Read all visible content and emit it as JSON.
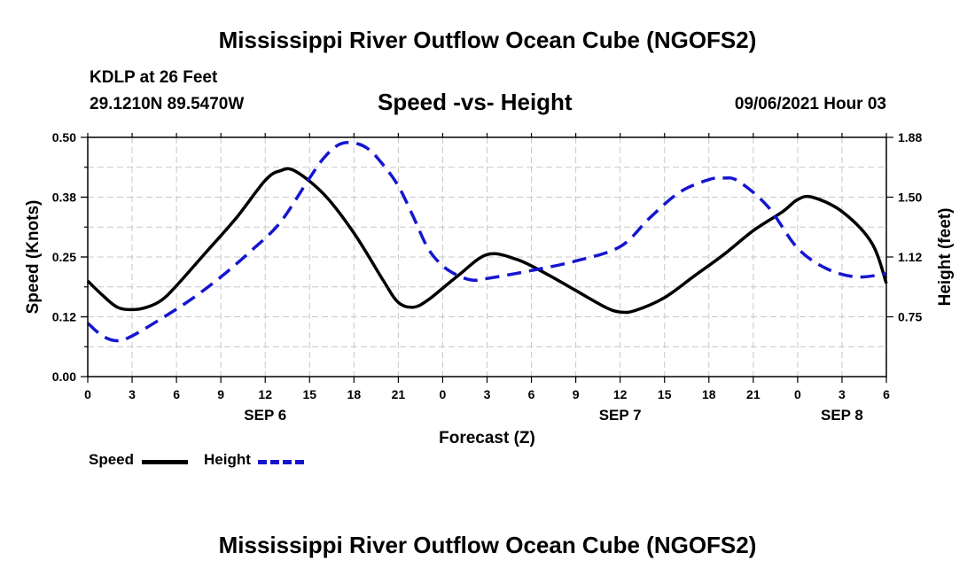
{
  "header": {
    "title": "Mississippi River Outflow Ocean Cube (NGOFS2)",
    "station": "KDLP at 26 Feet",
    "coords": "29.1210N  89.5470W",
    "subtitle": "Speed -vs- Height",
    "datetime": "09/06/2021 Hour 03"
  },
  "footer": {
    "title": "Mississippi River Outflow Ocean Cube (NGOFS2)"
  },
  "legend": {
    "speed_label": "Speed",
    "height_label": "Height"
  },
  "colors": {
    "speed": "#000000",
    "height": "#1515d0",
    "grid": "#c8c8c8"
  },
  "chart_data": {
    "type": "line",
    "title": "Speed -vs- Height",
    "xlabel": "Forecast (Z)",
    "ylabel_left": "Speed (Knots)",
    "ylabel_right": "Height (feet)",
    "x_hour_range": [
      0,
      54
    ],
    "y_left_lim": [
      0.0,
      0.5
    ],
    "y_right_lim": [
      0.375,
      1.875
    ],
    "x_ticks": [
      {
        "hour": 0,
        "label": "0"
      },
      {
        "hour": 3,
        "label": "3"
      },
      {
        "hour": 6,
        "label": "6"
      },
      {
        "hour": 9,
        "label": "9"
      },
      {
        "hour": 12,
        "label": "12"
      },
      {
        "hour": 15,
        "label": "15"
      },
      {
        "hour": 18,
        "label": "18"
      },
      {
        "hour": 21,
        "label": "21"
      },
      {
        "hour": 24,
        "label": "0"
      },
      {
        "hour": 27,
        "label": "3"
      },
      {
        "hour": 30,
        "label": "6"
      },
      {
        "hour": 33,
        "label": "9"
      },
      {
        "hour": 36,
        "label": "12"
      },
      {
        "hour": 39,
        "label": "15"
      },
      {
        "hour": 42,
        "label": "18"
      },
      {
        "hour": 45,
        "label": "21"
      },
      {
        "hour": 48,
        "label": "0"
      },
      {
        "hour": 51,
        "label": "3"
      },
      {
        "hour": 54,
        "label": "6"
      }
    ],
    "day_labels": [
      {
        "hour": 12,
        "label": "SEP 6"
      },
      {
        "hour": 36,
        "label": "SEP 7"
      },
      {
        "hour": 51,
        "label": "SEP 8"
      }
    ],
    "y_left_ticks": [
      {
        "value": 0.0,
        "label": "0.00"
      },
      {
        "value": 0.125,
        "label": "0.12"
      },
      {
        "value": 0.25,
        "label": "0.25"
      },
      {
        "value": 0.375,
        "label": "0.38"
      },
      {
        "value": 0.5,
        "label": "0.50"
      }
    ],
    "y_right_ticks": [
      {
        "value": 0.75,
        "label": "0.75"
      },
      {
        "value": 1.125,
        "label": "1.12"
      },
      {
        "value": 1.5,
        "label": "1.50"
      },
      {
        "value": 1.875,
        "label": "1.88"
      }
    ],
    "series": [
      {
        "name": "Speed",
        "axis": "left",
        "style": "solid",
        "x": [
          0,
          1,
          2,
          3,
          4,
          5,
          6,
          8,
          10,
          12,
          13,
          14,
          16,
          18,
          20,
          21,
          22,
          23,
          25,
          27,
          29,
          31,
          33,
          35,
          36,
          37,
          39,
          41,
          43,
          45,
          47,
          48,
          49,
          51,
          53,
          54
        ],
        "y": [
          0.2,
          0.17,
          0.145,
          0.14,
          0.145,
          0.16,
          0.19,
          0.26,
          0.33,
          0.41,
          0.43,
          0.43,
          0.38,
          0.3,
          0.2,
          0.155,
          0.145,
          0.16,
          0.21,
          0.255,
          0.245,
          0.215,
          0.18,
          0.145,
          0.135,
          0.138,
          0.165,
          0.21,
          0.255,
          0.305,
          0.345,
          0.37,
          0.375,
          0.345,
          0.28,
          0.195
        ]
      },
      {
        "name": "Height",
        "axis": "right",
        "style": "dashed",
        "x": [
          0,
          1,
          2,
          3,
          5,
          7,
          9,
          11,
          13,
          15,
          16,
          17,
          18,
          19,
          20,
          21,
          22,
          23,
          24,
          25,
          26,
          27,
          30,
          33,
          36,
          38,
          40,
          42,
          43,
          44,
          46,
          48,
          50,
          52,
          54
        ],
        "y": [
          0.71,
          0.63,
          0.6,
          0.63,
          0.74,
          0.86,
          1.0,
          1.16,
          1.34,
          1.62,
          1.75,
          1.83,
          1.84,
          1.8,
          1.7,
          1.57,
          1.38,
          1.18,
          1.07,
          1.01,
          0.98,
          0.99,
          1.04,
          1.1,
          1.19,
          1.37,
          1.53,
          1.61,
          1.62,
          1.6,
          1.44,
          1.18,
          1.05,
          1.0,
          1.02
        ]
      }
    ]
  }
}
